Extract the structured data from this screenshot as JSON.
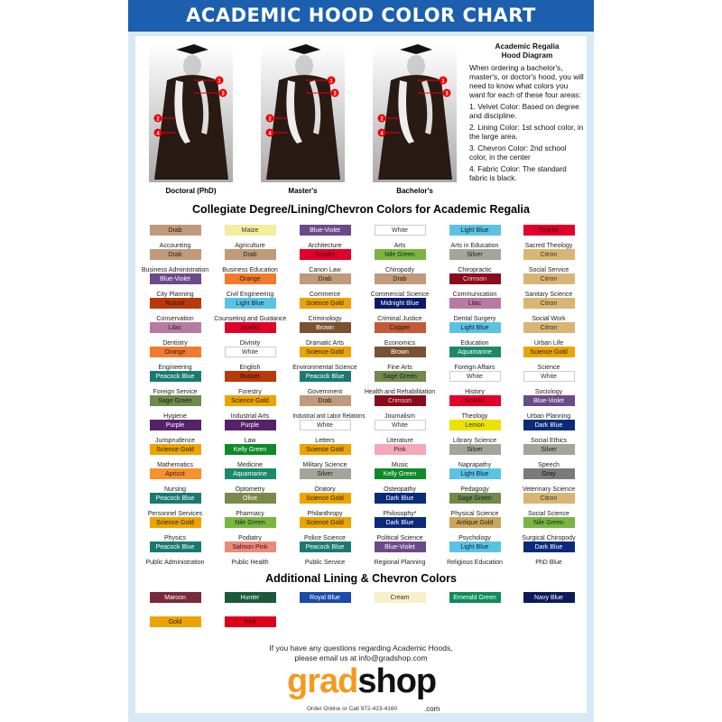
{
  "title": "ACADEMIC HOOD COLOR CHART",
  "gowns": [
    "Doctoral (PhD)",
    "Master's",
    "Bachelor's"
  ],
  "diagram": {
    "title_1": "Academic Regalia",
    "title_2": "Hood Diagram",
    "intro": "When ordering a bachelor's, master's, or doctor's hood, you will need to know what colors you want for each of these four areas:",
    "items": [
      "1. Velvet Color: Based on degree and discipline.",
      "2. Lining Color: 1st school color, in the large area.",
      "3. Chevron Color: 2nd school color, in the center",
      "4. Fabric Color: The standard fabric is black."
    ],
    "markers": [
      "1",
      "2",
      "3",
      "4"
    ]
  },
  "section_title": "Collegiate Degree/Lining/Chevron Colors for Academic Regalia",
  "colors": {
    "Drab": [
      "#c09a7a",
      "#222"
    ],
    "Maize": [
      "#f2ee9c",
      "#333"
    ],
    "Blue-Violet": [
      "#6b4a8a",
      "#fff"
    ],
    "White": [
      "#ffffff",
      "#333"
    ],
    "Light Blue": [
      "#5ac3e3",
      "#123"
    ],
    "Scarlet": [
      "#e0002a",
      "#400"
    ],
    "Nile Green": [
      "#7ab63e",
      "#123"
    ],
    "Silver": [
      "#a3a598",
      "#222"
    ],
    "Citron": [
      "#d9b574",
      "#333"
    ],
    "Orange": [
      "#f27a2c",
      "#321"
    ],
    "Crimson": [
      "#8a0a1e",
      "#fcc"
    ],
    "Russet": [
      "#b73a0a",
      "#311"
    ],
    "Science Gold": [
      "#eda400",
      "#222"
    ],
    "Midnight Blue": [
      "#0a1a6a",
      "#fff"
    ],
    "Lilac": [
      "#b77aa2",
      "#222"
    ],
    "Brown": [
      "#7a5232",
      "#fff"
    ],
    "Copper": [
      "#c25a3a",
      "#311"
    ],
    "Aquamarine": [
      "#1a8a6a",
      "#fff"
    ],
    "Peacock Blue": [
      "#1a7a72",
      "#fff"
    ],
    "Sage Green": [
      "#6f8a4a",
      "#122"
    ],
    "Purple": [
      "#55226a",
      "#fff"
    ],
    "Kelly Green": [
      "#0f8a2a",
      "#fff"
    ],
    "Pink": [
      "#f5a9b8",
      "#333"
    ],
    "Apricot": [
      "#f7912e",
      "#321"
    ],
    "Lemon": [
      "#ece200",
      "#333"
    ],
    "Gray": [
      "#7a7a7a",
      "#111"
    ],
    "Olive": [
      "#7a8a4a",
      "#fff"
    ],
    "Dark Blue": [
      "#0a2a7a",
      "#fff"
    ],
    "Salmon Pink": [
      "#ec8a7a",
      "#311"
    ],
    "Antique Gold": [
      "#c9a659",
      "#222"
    ],
    "Maroon": [
      "#7a2a3a",
      "#fff"
    ],
    "Hunter": [
      "#1a5a3a",
      "#fff"
    ],
    "Royal Blue": [
      "#1a4aaa",
      "#fff"
    ],
    "Cream": [
      "#f8f0c8",
      "#333"
    ],
    "Emerald Green": [
      "#0f8a5a",
      "#fff"
    ],
    "Navy Blue": [
      "#0a1a5a",
      "#fff"
    ],
    "Gold": [
      "#eda400",
      "#222"
    ],
    "Red": [
      "#e0001a",
      "#400"
    ]
  },
  "degrees": [
    [
      [
        "Drab",
        "Accounting"
      ],
      [
        "Maize",
        "Agriculture"
      ],
      [
        "Blue-Violet",
        "Architecture"
      ],
      [
        "White",
        "Arts"
      ],
      [
        "Light Blue",
        "Arts in Education"
      ],
      [
        "Scarlet",
        "Sacred Theology"
      ]
    ],
    [
      [
        "Drab",
        "Business Administration"
      ],
      [
        "Drab",
        "Business Education"
      ],
      [
        "Scarlet",
        "Canon Law"
      ],
      [
        "Nile Green",
        "Chiropody"
      ],
      [
        "Silver",
        "Chiropractic"
      ],
      [
        "Citron",
        "Social Service"
      ]
    ],
    [
      [
        "Blue-Violet",
        "City Planning"
      ],
      [
        "Orange",
        "Civil Engineering"
      ],
      [
        "Drab",
        "Commerce"
      ],
      [
        "Drab",
        "Commercial Science"
      ],
      [
        "Crimson",
        "Communication"
      ],
      [
        "Citron",
        "Sanitary Science"
      ]
    ],
    [
      [
        "Russet",
        "Conservation"
      ],
      [
        "Light Blue",
        "Counseling and Guidance"
      ],
      [
        "Science Gold",
        "Criminology"
      ],
      [
        "Midnight Blue",
        "Criminal Justice"
      ],
      [
        "Lilac",
        "Dental Surgery"
      ],
      [
        "Citron",
        "Social Work"
      ]
    ],
    [
      [
        "Lilac",
        "Dentistry"
      ],
      [
        "Scarlet",
        "Divinity"
      ],
      [
        "Brown",
        "Dramatic Arts"
      ],
      [
        "Copper",
        "Economics"
      ],
      [
        "Light Blue",
        "Education"
      ],
      [
        "Citron",
        "Urban Life"
      ]
    ],
    [
      [
        "Orange",
        "Engineering"
      ],
      [
        "White",
        "English"
      ],
      [
        "Science Gold",
        "Environmental Science"
      ],
      [
        "Brown",
        "Fine Arts"
      ],
      [
        "Aquamarine",
        "Foreign Affairs"
      ],
      [
        "Science Gold",
        "Science"
      ]
    ],
    [
      [
        "Peacock Blue",
        "Foreign Service"
      ],
      [
        "Russet",
        "Forestry"
      ],
      [
        "Peacock Blue",
        "Government"
      ],
      [
        "Sage Green",
        "Health and Rehabilitation"
      ],
      [
        "White",
        "History"
      ],
      [
        "White",
        "Sociology"
      ]
    ],
    [
      [
        "Sage Green",
        "Hygiene"
      ],
      [
        "Science Gold",
        "Industrial Arts"
      ],
      [
        "Drab",
        "Industrial and Labor Relations"
      ],
      [
        "Crimson",
        "Journalism"
      ],
      [
        "Scarlet",
        "Theology"
      ],
      [
        "Blue-Violet",
        "Urban Planning"
      ]
    ],
    [
      [
        "Purple",
        "Jurisprudence"
      ],
      [
        "Purple",
        "Law"
      ],
      [
        "White",
        "Letters"
      ],
      [
        "White",
        "Literature"
      ],
      [
        "Lemon",
        "Library Science"
      ],
      [
        "Dark Blue",
        "Social Ethics"
      ]
    ],
    [
      [
        "Science Gold",
        "Mathematics"
      ],
      [
        "Kelly Green",
        "Medicine"
      ],
      [
        "Science Gold",
        "Military Science"
      ],
      [
        "Pink",
        "Music"
      ],
      [
        "Silver",
        "Naprapathy"
      ],
      [
        "Silver",
        "Speech"
      ]
    ],
    [
      [
        "Apricot",
        "Nursing"
      ],
      [
        "Aquamarine",
        "Optometry"
      ],
      [
        "Silver",
        "Oratory"
      ],
      [
        "Kelly Green",
        "Osteopathy"
      ],
      [
        "Light Blue",
        "Pedagogy"
      ],
      [
        "Gray",
        "Veterinary Science"
      ]
    ],
    [
      [
        "Peacock Blue",
        "Personnel Services"
      ],
      [
        "Olive",
        "Pharmacy"
      ],
      [
        "Science Gold",
        "Philanthropy"
      ],
      [
        "Dark Blue",
        "Philosophy*"
      ],
      [
        "Sage Green",
        "Physical Science"
      ],
      [
        "Citron",
        "Social Science"
      ]
    ],
    [
      [
        "Science Gold",
        "Physics"
      ],
      [
        "Nile Green",
        "Podiatry"
      ],
      [
        "Science Gold",
        "Police Science"
      ],
      [
        "Dark Blue",
        "Political Science"
      ],
      [
        "Antique Gold",
        "Psychology"
      ],
      [
        "Nile Green",
        "Surgical Chiropody"
      ]
    ],
    [
      [
        "Peacock Blue",
        "Public Administration"
      ],
      [
        "Salmon Pink",
        "Public Health"
      ],
      [
        "Peacock Blue",
        "Public Service"
      ],
      [
        "Blue-Violet",
        "Regional Planning"
      ],
      [
        "Light Blue",
        "Religious Education"
      ],
      [
        "Dark Blue",
        "PhD Blue"
      ]
    ]
  ],
  "additional_title": "Additional Lining & Chevron Colors",
  "additional": [
    "Maroon",
    "Hunter",
    "Royal Blue",
    "Cream",
    "Emerald Green",
    "Navy Blue",
    "Gold",
    "Red"
  ],
  "footer": {
    "line1": "If you have any questions regarding Academic Hoods,",
    "line2": "please email us at info@gradshop.com"
  },
  "logo": {
    "part1": "grad",
    "part2": "shop",
    "tagline": "Order Online or Call 972-423-4160",
    "domain": ".com"
  }
}
